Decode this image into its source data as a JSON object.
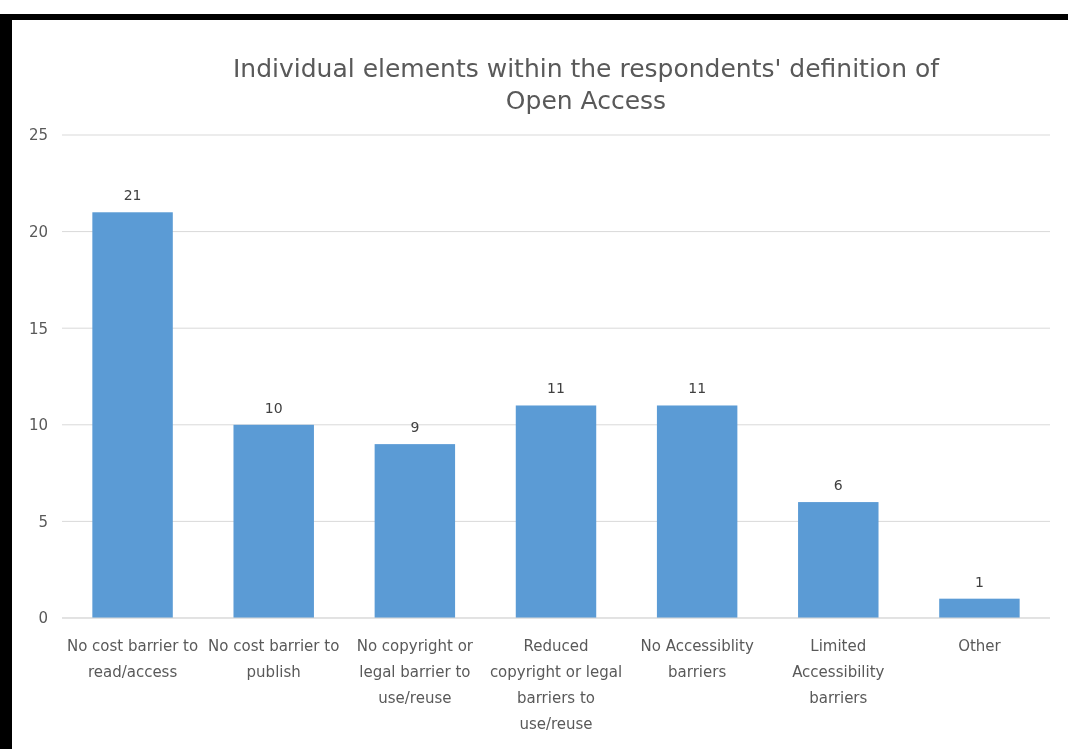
{
  "chart_data": {
    "type": "bar",
    "title": "Individual elements within the respondents' definition of Open Access",
    "categories": [
      "No cost barrier to read/access",
      "No cost barrier to publish",
      "No copyright or legal barrier to use/reuse",
      "Reduced copyright or legal barriers to use/reuse",
      "No Accessiblity barriers",
      "Limited Accessibility barriers",
      "Other"
    ],
    "values": [
      21,
      10,
      9,
      11,
      11,
      6,
      1
    ],
    "color": "#5b9bd5",
    "ylim": [
      0,
      25
    ],
    "yticks": [
      0,
      5,
      10,
      15,
      20,
      25
    ],
    "grid": "y",
    "data_labels": true
  }
}
